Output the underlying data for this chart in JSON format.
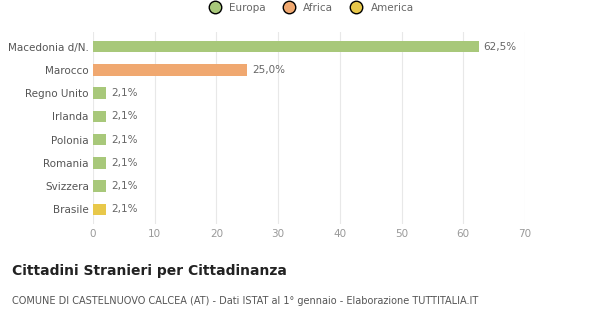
{
  "categories": [
    "Brasile",
    "Svizzera",
    "Romania",
    "Polonia",
    "Irlanda",
    "Regno Unito",
    "Marocco",
    "Macedonia d/N."
  ],
  "values": [
    2.1,
    2.1,
    2.1,
    2.1,
    2.1,
    2.1,
    25.0,
    62.5
  ],
  "colors": [
    "#e8c84a",
    "#a8c87a",
    "#a8c87a",
    "#a8c87a",
    "#a8c87a",
    "#a8c87a",
    "#f0a870",
    "#a8c87a"
  ],
  "labels": [
    "2,1%",
    "2,1%",
    "2,1%",
    "2,1%",
    "2,1%",
    "2,1%",
    "25,0%",
    "62,5%"
  ],
  "legend_labels": [
    "Europa",
    "Africa",
    "America"
  ],
  "legend_colors": [
    "#a8c87a",
    "#f0a870",
    "#e8c84a"
  ],
  "title": "Cittadini Stranieri per Cittadinanza",
  "subtitle": "COMUNE DI CASTELNUOVO CALCEA (AT) - Dati ISTAT al 1° gennaio - Elaborazione TUTTITALIA.IT",
  "xlim": [
    0,
    70
  ],
  "xticks": [
    0,
    10,
    20,
    30,
    40,
    50,
    60,
    70
  ],
  "background_color": "#ffffff",
  "grid_color": "#e8e8e8",
  "bar_height": 0.5,
  "label_fontsize": 7.5,
  "tick_fontsize": 7.5,
  "ylabel_fontsize": 7.5,
  "title_fontsize": 10,
  "subtitle_fontsize": 7
}
